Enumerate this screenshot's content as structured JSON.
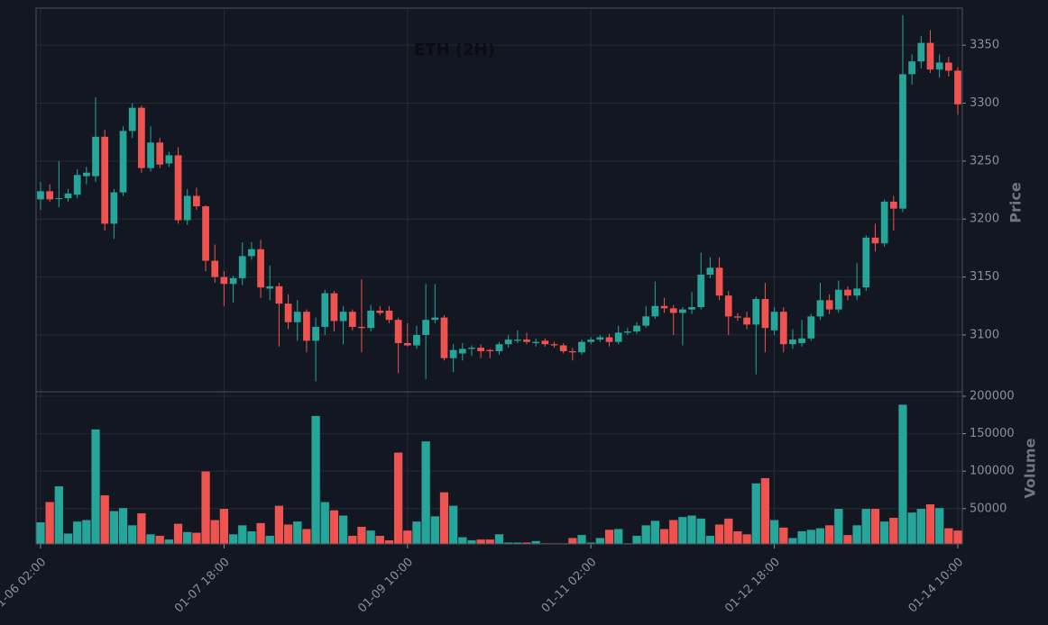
{
  "chart_data": [
    {
      "type": "candlestick",
      "title": "ETH (2H)",
      "y_label": "Price",
      "categories": [
        "01-06 02:00",
        null,
        null,
        null,
        null,
        null,
        null,
        null,
        null,
        null,
        null,
        null,
        null,
        null,
        null,
        null,
        null,
        null,
        null,
        null,
        "01-07 18:00",
        null,
        null,
        null,
        null,
        null,
        null,
        null,
        null,
        null,
        null,
        null,
        null,
        null,
        null,
        null,
        null,
        null,
        null,
        null,
        "01-09 10:00",
        null,
        null,
        null,
        null,
        null,
        null,
        null,
        null,
        null,
        null,
        null,
        null,
        null,
        null,
        null,
        null,
        null,
        null,
        null,
        "01-11 02:00",
        null,
        null,
        null,
        null,
        null,
        null,
        null,
        null,
        null,
        null,
        null,
        null,
        null,
        null,
        null,
        null,
        null,
        null,
        null,
        "01-12 18:00",
        null,
        null,
        null,
        null,
        null,
        null,
        null,
        null,
        null,
        null,
        null,
        null,
        null,
        null,
        null,
        null,
        null,
        null,
        null,
        "01-14 10:00"
      ],
      "open": [
        3217,
        3224,
        3218,
        3218,
        3221,
        3237,
        3237,
        3271,
        3196,
        3223,
        3276,
        3296,
        3244,
        3266,
        3248,
        3255,
        3199,
        3220,
        3211,
        3164,
        3150,
        3144,
        3149,
        3168,
        3174,
        3140,
        3142,
        3127,
        3111,
        3120,
        3095,
        3107,
        3136,
        3112,
        3120,
        3107,
        3106,
        3121,
        3121,
        3113,
        3093,
        3091,
        3100,
        3113,
        3115,
        3080,
        3084,
        3088,
        3089,
        3087,
        3086,
        3092,
        3095,
        3096,
        3093,
        3095,
        3092,
        3091,
        3086,
        3085,
        3094,
        3096,
        3098,
        3094,
        3102,
        3103,
        3108,
        3116,
        3125,
        3123,
        3119,
        3122,
        3124,
        3152,
        3158,
        3134,
        3116,
        3115,
        3109,
        3131,
        3104,
        3120,
        3092,
        3093,
        3097,
        3116,
        3130,
        3122,
        3139,
        3134,
        3141,
        3184,
        3179,
        3215,
        3209,
        3325,
        3336,
        3352,
        3329,
        3335,
        3328
      ],
      "high": [
        3232,
        3230,
        3250,
        3226,
        3243,
        3245,
        3305,
        3277,
        3226,
        3280,
        3300,
        3298,
        3280,
        3270,
        3258,
        3262,
        3226,
        3227,
        3212,
        3178,
        3155,
        3151,
        3180,
        3180,
        3182,
        3160,
        3145,
        3135,
        3130,
        3122,
        3115,
        3139,
        3138,
        3125,
        3122,
        3148,
        3126,
        3125,
        3125,
        3115,
        3110,
        3108,
        3144,
        3144,
        3117,
        3092,
        3093,
        3091,
        3092,
        3088,
        3094,
        3100,
        3104,
        3102,
        3097,
        3097,
        3094,
        3093,
        3089,
        3096,
        3098,
        3100,
        3101,
        3108,
        3106,
        3111,
        3125,
        3146,
        3132,
        3126,
        3124,
        3137,
        3171,
        3167,
        3167,
        3138,
        3119,
        3120,
        3133,
        3145,
        3124,
        3124,
        3105,
        3113,
        3118,
        3145,
        3135,
        3147,
        3142,
        3162,
        3186,
        3196,
        3217,
        3220,
        3376,
        3342,
        3358,
        3363,
        3342,
        3340,
        3331
      ],
      "low": [
        3208,
        3215,
        3210,
        3215,
        3218,
        3230,
        3232,
        3190,
        3183,
        3220,
        3270,
        3240,
        3241,
        3244,
        3245,
        3196,
        3195,
        3208,
        3155,
        3145,
        3125,
        3128,
        3143,
        3165,
        3132,
        3130,
        3090,
        3105,
        3095,
        3085,
        3060,
        3100,
        3103,
        3092,
        3104,
        3085,
        3103,
        3117,
        3110,
        3067,
        3090,
        3088,
        3062,
        3110,
        3078,
        3068,
        3078,
        3082,
        3080,
        3080,
        3083,
        3089,
        3093,
        3092,
        3090,
        3090,
        3089,
        3084,
        3078,
        3083,
        3092,
        3094,
        3090,
        3092,
        3100,
        3101,
        3106,
        3114,
        3119,
        3100,
        3091,
        3118,
        3122,
        3149,
        3130,
        3100,
        3112,
        3105,
        3066,
        3085,
        3100,
        3085,
        3088,
        3090,
        3095,
        3113,
        3118,
        3119,
        3130,
        3130,
        3138,
        3172,
        3176,
        3190,
        3206,
        3316,
        3330,
        3326,
        3322,
        3323,
        3290
      ],
      "close": [
        3224,
        3217,
        3218,
        3222,
        3238,
        3240,
        3271,
        3196,
        3223,
        3276,
        3296,
        3244,
        3266,
        3247,
        3255,
        3199,
        3220,
        3211,
        3164,
        3150,
        3144,
        3149,
        3168,
        3174,
        3141,
        3142,
        3127,
        3111,
        3120,
        3095,
        3107,
        3136,
        3112,
        3120,
        3107,
        3106,
        3121,
        3119,
        3113,
        3093,
        3091,
        3100,
        3113,
        3115,
        3080,
        3087,
        3088,
        3089,
        3086,
        3086,
        3092,
        3096,
        3096,
        3094,
        3094,
        3092,
        3091,
        3086,
        3085,
        3094,
        3096,
        3098,
        3094,
        3102,
        3103,
        3108,
        3116,
        3125,
        3123,
        3119,
        3122,
        3124,
        3152,
        3158,
        3134,
        3116,
        3115,
        3109,
        3131,
        3106,
        3120,
        3092,
        3096,
        3097,
        3116,
        3130,
        3122,
        3139,
        3134,
        3140,
        3184,
        3179,
        3215,
        3209,
        3325,
        3336,
        3352,
        3329,
        3335,
        3328,
        3299
      ],
      "ylim": [
        3051,
        3382
      ],
      "yticks": [
        3100,
        3150,
        3200,
        3250,
        3300,
        3350
      ],
      "up_color": "#26a69a",
      "down_color": "#ef5350",
      "grid": true
    },
    {
      "type": "bar",
      "y_label": "Volume",
      "values": [
        32000,
        59000,
        80000,
        17000,
        33000,
        35000,
        156000,
        68000,
        47000,
        51000,
        28000,
        44000,
        16000,
        14000,
        9000,
        30000,
        19000,
        18000,
        100000,
        35000,
        50000,
        16000,
        28000,
        20000,
        31000,
        14000,
        54000,
        29000,
        33000,
        23000,
        174000,
        59000,
        48000,
        41000,
        14000,
        26000,
        21000,
        14000,
        8000,
        125000,
        21000,
        33000,
        140000,
        40000,
        72000,
        54000,
        12000,
        8000,
        9000,
        9000,
        16000,
        5000,
        5000,
        5000,
        7000,
        4000,
        4000,
        4000,
        11000,
        15000,
        5000,
        11000,
        22000,
        23000,
        4000,
        14000,
        28000,
        34000,
        23000,
        35000,
        39000,
        41000,
        37000,
        14000,
        29000,
        37000,
        20000,
        16000,
        84000,
        91000,
        35000,
        25000,
        11000,
        20000,
        22000,
        24000,
        28000,
        50000,
        15000,
        28000,
        50000,
        50000,
        33000,
        38000,
        189000,
        45000,
        50000,
        56000,
        51000,
        24000,
        21000
      ],
      "ylim": [
        2840,
        206000
      ],
      "yticks": [
        {
          "value": 50000,
          "label": "50000"
        },
        {
          "value": 100000,
          "label": "100000"
        },
        {
          "value": 150000,
          "label": "150000"
        },
        {
          "value": 200000,
          "label": "200000"
        }
      ],
      "grid": true
    }
  ]
}
